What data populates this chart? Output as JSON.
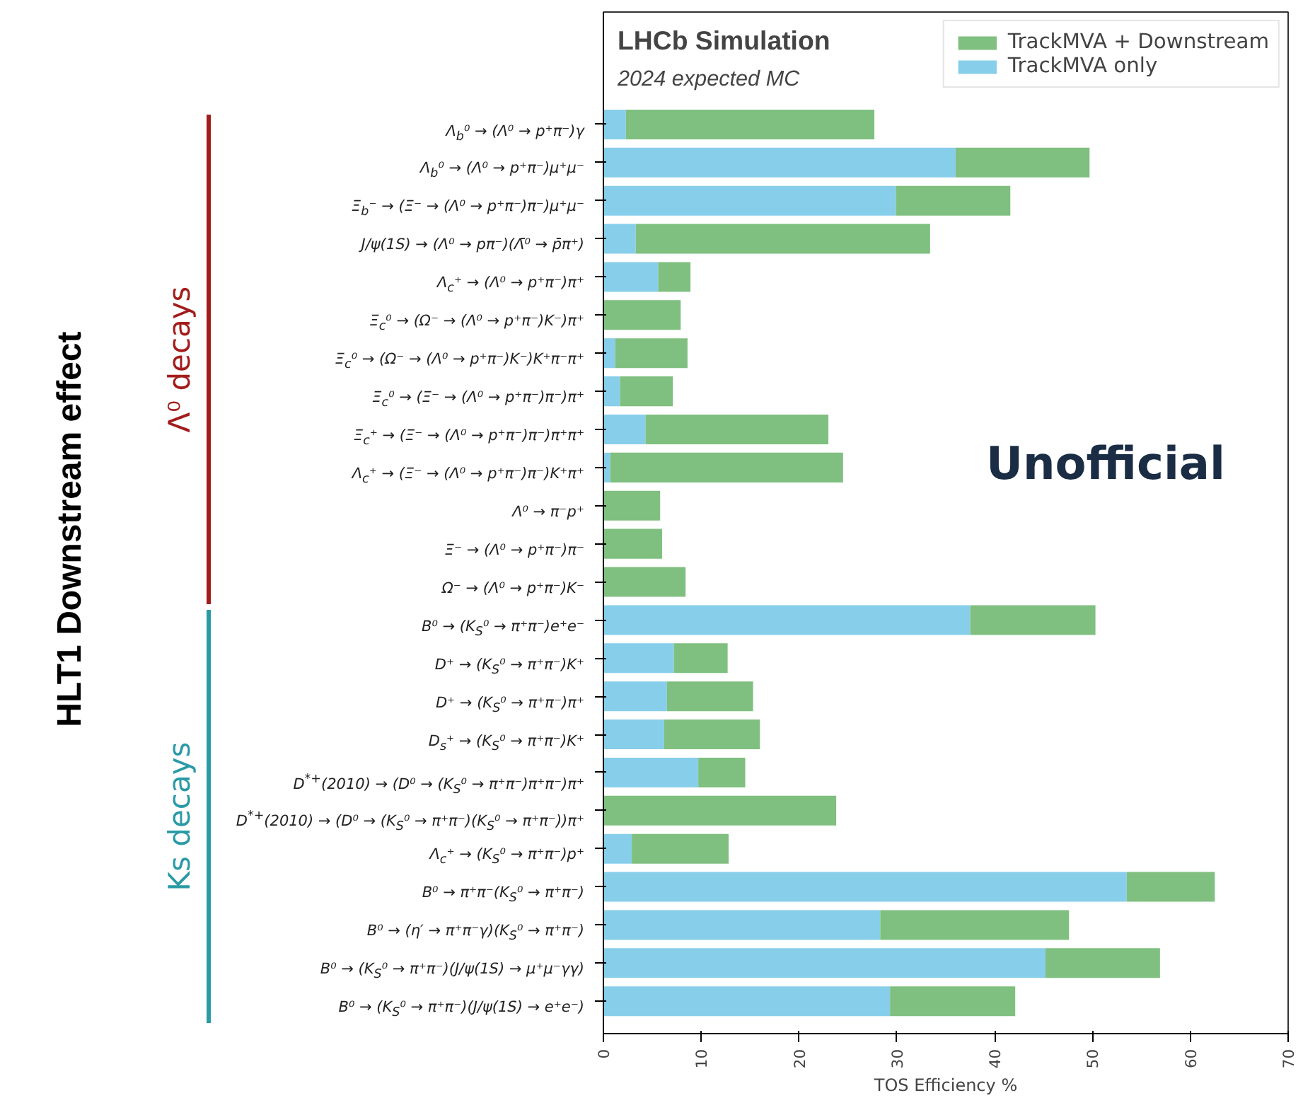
{
  "chart_data": {
    "type": "bar",
    "orientation": "horizontal",
    "stacked": true,
    "title": "LHCb Simulation",
    "subtitle": "2024 expected MC",
    "xlabel": "TOS Efficiency %",
    "ylabel": "HLT1 Downstream effect",
    "categories": [
      "Λ$_{b}$⁰ → (Λ⁰ → p⁺π⁻)γ",
      "Λ$_{b}$⁰ → (Λ⁰ → p⁺π⁻)μ⁺μ⁻",
      "Ξ$_{b}$⁻ → (Ξ⁻ → (Λ⁰ → p⁺π⁻)π⁻)μ⁺μ⁻",
      "J/ψ(1S) → (Λ⁰ → pπ⁻)(Λ̄⁰ → p̄π⁺)",
      "Λ$_{c}$⁺ → (Λ⁰ → p⁺π⁻)π⁺",
      "Ξ$_{c}$⁰ → (Ω⁻ → (Λ⁰ → p⁺π⁻)K⁻)π⁺",
      "Ξ$_{c}$⁰ → (Ω⁻ → (Λ⁰ → p⁺π⁻)K⁻)K⁺π⁻π⁺",
      "Ξ$_{c}$⁰ → (Ξ⁻ → (Λ⁰ → p⁺π⁻)π⁻)π⁺",
      "Ξ$_{c}$⁺ → (Ξ⁻ → (Λ⁰ → p⁺π⁻)π⁻)π⁺π⁺",
      "Λ$_{c}$⁺ → (Ξ⁻ → (Λ⁰ → p⁺π⁻)π⁻)K⁺π⁺",
      "Λ⁰ → π⁻p⁺",
      "Ξ⁻ → (Λ⁰ → p⁺π⁻)π⁻",
      "Ω⁻ → (Λ⁰ → p⁺π⁻)K⁻",
      "B⁰ → (K$_{S}$⁰ → π⁺π⁻)e⁺e⁻",
      "D⁺ → (K$_{S}$⁰ → π⁺π⁻)K⁺",
      "D⁺ → (K$_{S}$⁰ → π⁺π⁻)π⁺",
      "D$_{s}$⁺ → (K$_{S}$⁰ → π⁺π⁻)K⁺",
      "D$^{*+}$(2010) → (D⁰ → (K$_{S}$⁰ → π⁺π⁻)π⁺π⁻)π⁺",
      "D$^{*+}$(2010) → (D⁰ → (K$_{S}$⁰ → π⁺π⁻)(K$_{S}$⁰ → π⁺π⁻))π⁺",
      "Λ$_{c}$⁺ → (K$_{S}$⁰ → π⁺π⁻)p⁺",
      "B⁰ → π⁺π⁻(K$_{S}$⁰ → π⁺π⁻)",
      "B⁰ → (η′ → π⁺π⁻γ)(K$_{S}$⁰ → π⁺π⁻)",
      "B⁰ → (K$_{S}$⁰ → π⁺π⁻)(J/ψ(1S) → μ⁺μ⁻γγ)",
      "B⁰ → (K$_{S}$⁰ → π⁺π⁻)(J/ψ(1S) → e⁺e⁻)"
    ],
    "series": [
      {
        "name": "TrackMVA only",
        "color": "#87ceeb",
        "values": [
          2.3,
          36.0,
          29.9,
          3.3,
          5.6,
          0,
          1.2,
          1.7,
          4.3,
          0.7,
          0,
          0,
          0,
          37.5,
          7.2,
          6.5,
          6.2,
          9.7,
          0,
          2.9,
          53.5,
          28.3,
          45.2,
          29.3
        ]
      },
      {
        "name": "TrackMVA + Downstream",
        "color": "#7fbf7f",
        "values": [
          25.4,
          13.7,
          11.7,
          30.1,
          3.3,
          7.9,
          7.4,
          5.4,
          18.7,
          23.8,
          5.8,
          6.0,
          8.4,
          12.8,
          5.5,
          8.8,
          9.8,
          4.8,
          23.8,
          9.9,
          9.0,
          19.3,
          11.7,
          12.8
        ]
      }
    ],
    "xlim": [
      0,
      70
    ],
    "xticks": [
      0,
      10,
      20,
      30,
      40,
      50,
      60,
      70
    ],
    "legend": "top right",
    "grid": false,
    "annotations": [
      "Unofficial",
      "Λ⁰ decays",
      "Ks decays"
    ]
  }
}
